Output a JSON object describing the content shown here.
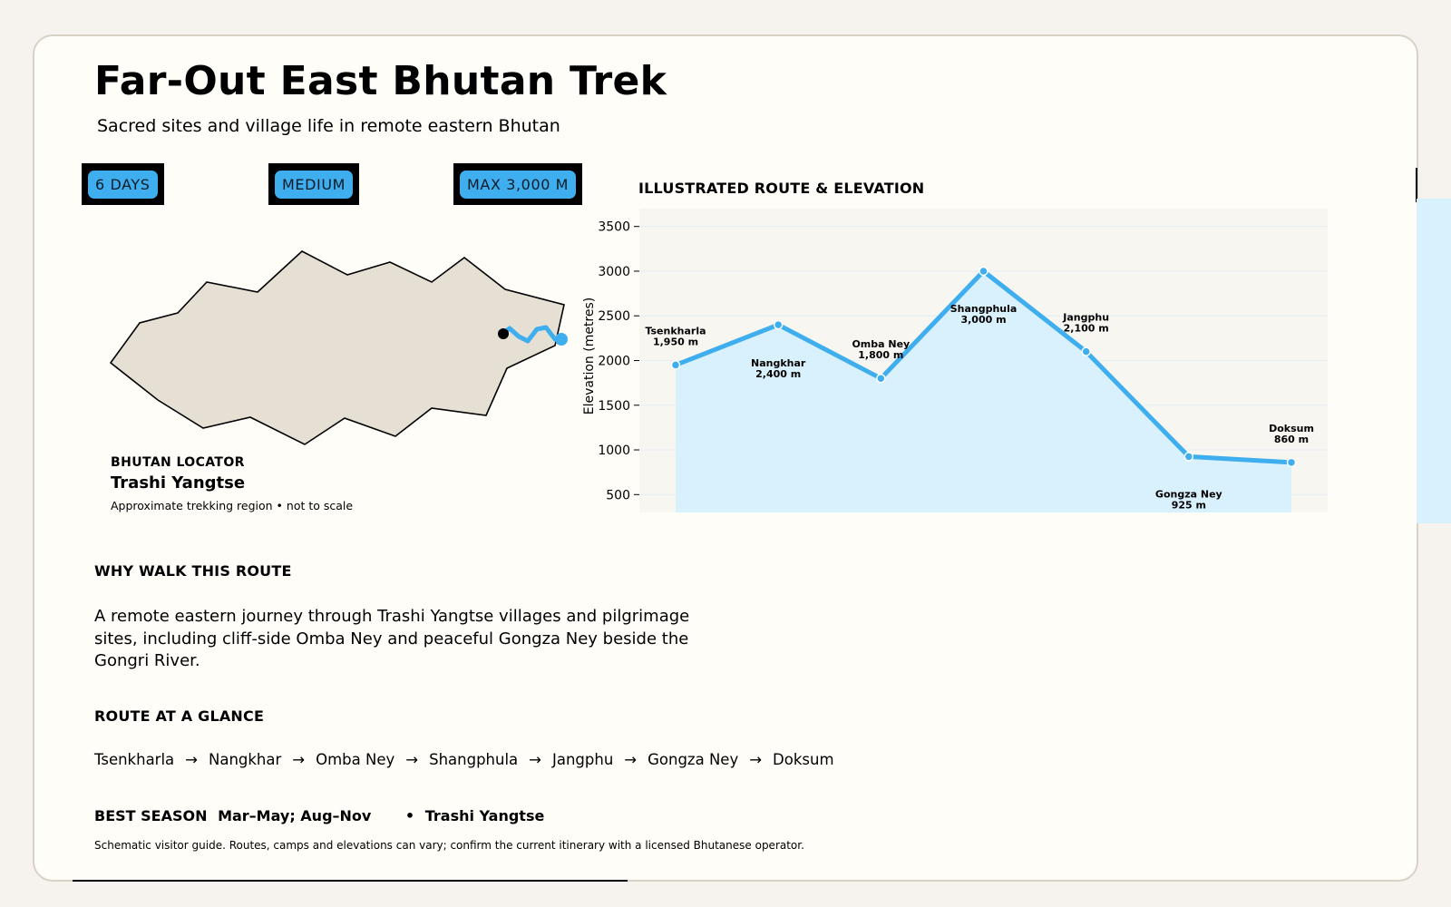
{
  "title": "Far-Out East Bhutan Trek",
  "subtitle": "Sacred sites and village life in remote eastern Bhutan",
  "badges": {
    "days": "6 DAYS",
    "difficulty": "MEDIUM",
    "max_alt": "MAX 3,000 M"
  },
  "locator": {
    "label": "BHUTAN LOCATOR",
    "region": "Trashi Yangtse",
    "note": "Approximate trekking region • not to scale"
  },
  "chart_heading": "ILLUSTRATED ROUTE & ELEVATION",
  "chart_data": {
    "type": "area",
    "title": "ILLUSTRATED ROUTE & ELEVATION",
    "ylabel": "Elevation (metres)",
    "xlabel": "",
    "ylim": [
      300,
      3700
    ],
    "yticks": [
      500,
      1000,
      1500,
      2000,
      2500,
      3000,
      3500
    ],
    "grid": true,
    "categories": [
      "Tsenkharla",
      "Nangkhar",
      "Omba Ney",
      "Shangphula",
      "Jangphu",
      "Gongza Ney",
      "Doksum"
    ],
    "values": [
      1950,
      2400,
      1800,
      3000,
      2100,
      925,
      860
    ],
    "value_labels": [
      "1,950 m",
      "2,400 m",
      "1,800 m",
      "3,000 m",
      "2,100 m",
      "925 m",
      "860 m"
    ],
    "colors": {
      "line": "#3eaeef",
      "fill": "#d9f0fd",
      "plot_bg": "#f8f6f1"
    }
  },
  "why": {
    "heading": "WHY WALK THIS ROUTE",
    "body": "A remote eastern journey through Trashi Yangtse villages and pilgrimage sites, including cliff-side Omba Ney and peaceful Gongza Ney beside the Gongri River."
  },
  "route": {
    "heading": "ROUTE AT A GLANCE",
    "stops": [
      "Tsenkharla",
      "Nangkhar",
      "Omba Ney",
      "Shangphula",
      "Jangphu",
      "Gongza Ney",
      "Doksum"
    ],
    "arrow": "→"
  },
  "season": {
    "label": "BEST SEASON",
    "value": "Mar–May; Aug–Nov",
    "separator": "•",
    "region": "Trashi Yangtse"
  },
  "disclaimer": "Schematic visitor guide. Routes, camps and elevations can vary; confirm the current itinerary with a licensed Bhutanese operator.",
  "colors": {
    "accent": "#3eaeef",
    "map_fill": "#e6dfd3",
    "card_bg": "#fffdf8",
    "page_bg": "#f6f3ee"
  }
}
